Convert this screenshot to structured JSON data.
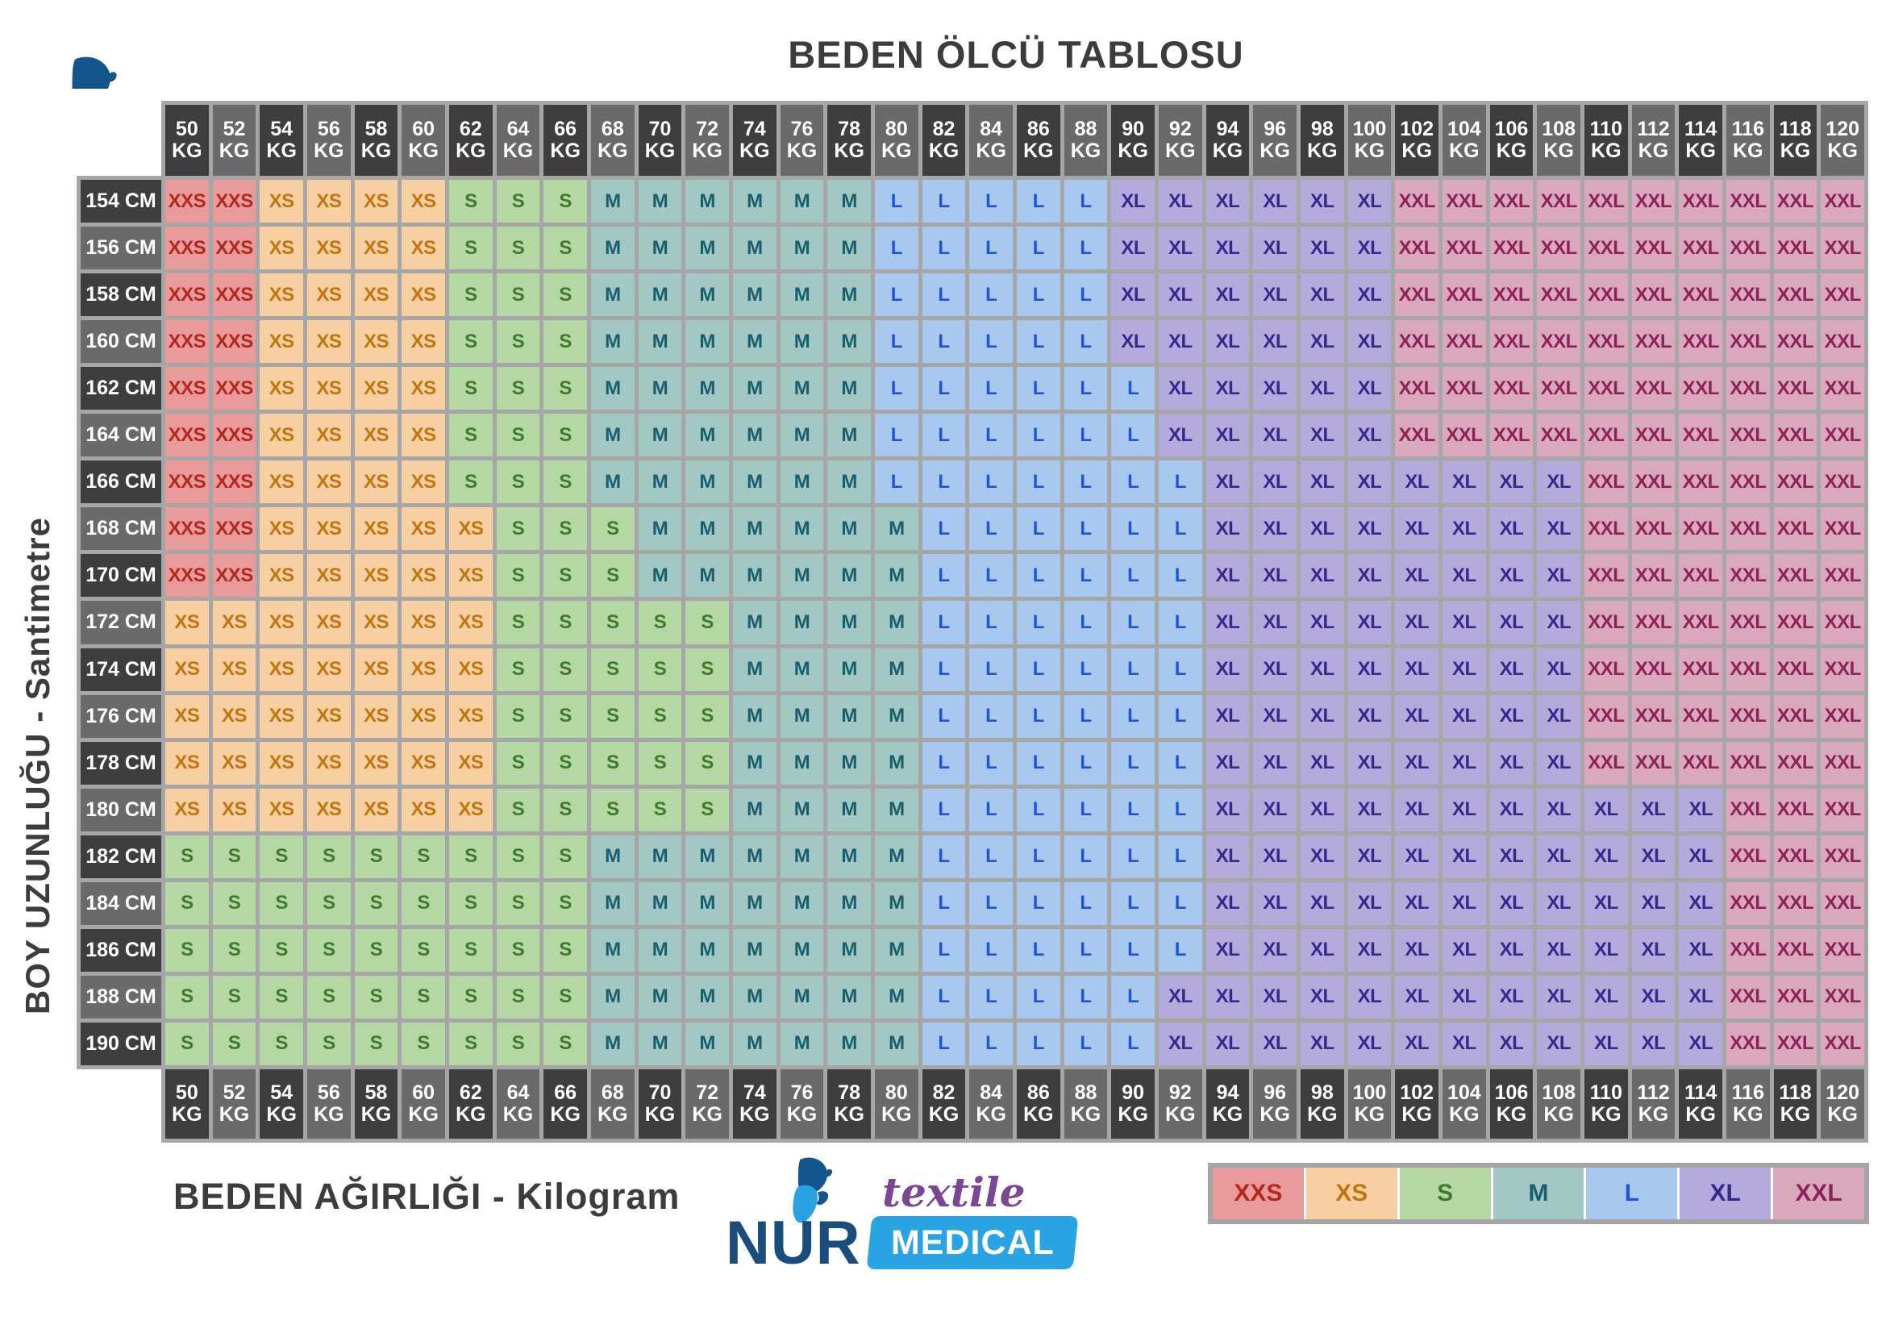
{
  "title": "BEDEN ÖLCÜ TABLOSU",
  "axis": {
    "left": "BOY UZUNLUĞU - Santimetre",
    "bottom": "BEDEN AĞIRLIĞI - Kilogram"
  },
  "logo": {
    "brand": "NUR",
    "tagline": "textile",
    "sub": "MEDICAL"
  },
  "legend": [
    "XXS",
    "XS",
    "S",
    "M",
    "L",
    "XL",
    "XXL"
  ],
  "colors": {
    "frame": "#a6a6a6",
    "header_dark": "#3e3e3e",
    "header_light": "#6a6a6a",
    "header_text": "#ffffff",
    "title_text": "#3c3c3c",
    "logo_navy": "#1a4c7d",
    "logo_purple": "#7c4697",
    "logo_blue": "#29a3e2",
    "sizes": {
      "XXS": {
        "bg": "#e99b9c",
        "fg": "#b5261b"
      },
      "XS": {
        "bg": "#f8cfa3",
        "fg": "#c1760d"
      },
      "S": {
        "bg": "#b4d7a4",
        "fg": "#3d7c2a"
      },
      "M": {
        "bg": "#a3c7c3",
        "fg": "#175f6e"
      },
      "L": {
        "bg": "#a9c8f0",
        "fg": "#1d54da"
      },
      "XL": {
        "bg": "#b5aadc",
        "fg": "#38288e"
      },
      "XXL": {
        "bg": "#daa8bd",
        "fg": "#8d2158"
      }
    }
  },
  "chart_data": {
    "type": "heatmap",
    "title": "BEDEN ÖLCÜ TABLOSU",
    "xlabel": "BEDEN AĞIRLIĞI - Kilogram",
    "ylabel": "BOY UZUNLUĞU - Santimetre",
    "x_unit": "KG",
    "y_unit": "CM",
    "legend": [
      "XXS",
      "XS",
      "S",
      "M",
      "L",
      "XL",
      "XXL"
    ],
    "x": [
      50,
      52,
      54,
      56,
      58,
      60,
      62,
      64,
      66,
      68,
      70,
      72,
      74,
      76,
      78,
      80,
      82,
      84,
      86,
      88,
      90,
      92,
      94,
      96,
      98,
      100,
      102,
      104,
      106,
      108,
      110,
      112,
      114,
      116,
      118,
      120
    ],
    "y": [
      154,
      156,
      158,
      160,
      162,
      164,
      166,
      168,
      170,
      172,
      174,
      176,
      178,
      180,
      182,
      184,
      186,
      188,
      190
    ],
    "values": [
      [
        "XXS",
        "XXS",
        "XS",
        "XS",
        "XS",
        "XS",
        "S",
        "S",
        "S",
        "M",
        "M",
        "M",
        "M",
        "M",
        "M",
        "L",
        "L",
        "L",
        "L",
        "L",
        "XL",
        "XL",
        "XL",
        "XL",
        "XL",
        "XL",
        "XXL",
        "XXL",
        "XXL",
        "XXL",
        "XXL",
        "XXL",
        "XXL",
        "XXL",
        "XXL",
        "XXL"
      ],
      [
        "XXS",
        "XXS",
        "XS",
        "XS",
        "XS",
        "XS",
        "S",
        "S",
        "S",
        "M",
        "M",
        "M",
        "M",
        "M",
        "M",
        "L",
        "L",
        "L",
        "L",
        "L",
        "XL",
        "XL",
        "XL",
        "XL",
        "XL",
        "XL",
        "XXL",
        "XXL",
        "XXL",
        "XXL",
        "XXL",
        "XXL",
        "XXL",
        "XXL",
        "XXL",
        "XXL"
      ],
      [
        "XXS",
        "XXS",
        "XS",
        "XS",
        "XS",
        "XS",
        "S",
        "S",
        "S",
        "M",
        "M",
        "M",
        "M",
        "M",
        "M",
        "L",
        "L",
        "L",
        "L",
        "L",
        "XL",
        "XL",
        "XL",
        "XL",
        "XL",
        "XL",
        "XXL",
        "XXL",
        "XXL",
        "XXL",
        "XXL",
        "XXL",
        "XXL",
        "XXL",
        "XXL",
        "XXL"
      ],
      [
        "XXS",
        "XXS",
        "XS",
        "XS",
        "XS",
        "XS",
        "S",
        "S",
        "S",
        "M",
        "M",
        "M",
        "M",
        "M",
        "M",
        "L",
        "L",
        "L",
        "L",
        "L",
        "XL",
        "XL",
        "XL",
        "XL",
        "XL",
        "XL",
        "XXL",
        "XXL",
        "XXL",
        "XXL",
        "XXL",
        "XXL",
        "XXL",
        "XXL",
        "XXL",
        "XXL"
      ],
      [
        "XXS",
        "XXS",
        "XS",
        "XS",
        "XS",
        "XS",
        "S",
        "S",
        "S",
        "M",
        "M",
        "M",
        "M",
        "M",
        "M",
        "L",
        "L",
        "L",
        "L",
        "L",
        "L",
        "XL",
        "XL",
        "XL",
        "XL",
        "XL",
        "XXL",
        "XXL",
        "XXL",
        "XXL",
        "XXL",
        "XXL",
        "XXL",
        "XXL",
        "XXL",
        "XXL"
      ],
      [
        "XXS",
        "XXS",
        "XS",
        "XS",
        "XS",
        "XS",
        "S",
        "S",
        "S",
        "M",
        "M",
        "M",
        "M",
        "M",
        "M",
        "L",
        "L",
        "L",
        "L",
        "L",
        "L",
        "XL",
        "XL",
        "XL",
        "XL",
        "XL",
        "XXL",
        "XXL",
        "XXL",
        "XXL",
        "XXL",
        "XXL",
        "XXL",
        "XXL",
        "XXL",
        "XXL"
      ],
      [
        "XXS",
        "XXS",
        "XS",
        "XS",
        "XS",
        "XS",
        "S",
        "S",
        "S",
        "M",
        "M",
        "M",
        "M",
        "M",
        "M",
        "L",
        "L",
        "L",
        "L",
        "L",
        "L",
        "L",
        "XL",
        "XL",
        "XL",
        "XL",
        "XL",
        "XL",
        "XL",
        "XL",
        "XXL",
        "XXL",
        "XXL",
        "XXL",
        "XXL",
        "XXL"
      ],
      [
        "XXS",
        "XXS",
        "XS",
        "XS",
        "XS",
        "XS",
        "XS",
        "S",
        "S",
        "S",
        "M",
        "M",
        "M",
        "M",
        "M",
        "M",
        "L",
        "L",
        "L",
        "L",
        "L",
        "L",
        "XL",
        "XL",
        "XL",
        "XL",
        "XL",
        "XL",
        "XL",
        "XL",
        "XXL",
        "XXL",
        "XXL",
        "XXL",
        "XXL",
        "XXL"
      ],
      [
        "XXS",
        "XXS",
        "XS",
        "XS",
        "XS",
        "XS",
        "XS",
        "S",
        "S",
        "S",
        "M",
        "M",
        "M",
        "M",
        "M",
        "M",
        "L",
        "L",
        "L",
        "L",
        "L",
        "L",
        "XL",
        "XL",
        "XL",
        "XL",
        "XL",
        "XL",
        "XL",
        "XL",
        "XXL",
        "XXL",
        "XXL",
        "XXL",
        "XXL",
        "XXL"
      ],
      [
        "XS",
        "XS",
        "XS",
        "XS",
        "XS",
        "XS",
        "XS",
        "S",
        "S",
        "S",
        "S",
        "S",
        "M",
        "M",
        "M",
        "M",
        "L",
        "L",
        "L",
        "L",
        "L",
        "L",
        "XL",
        "XL",
        "XL",
        "XL",
        "XL",
        "XL",
        "XL",
        "XL",
        "XXL",
        "XXL",
        "XXL",
        "XXL",
        "XXL",
        "XXL"
      ],
      [
        "XS",
        "XS",
        "XS",
        "XS",
        "XS",
        "XS",
        "XS",
        "S",
        "S",
        "S",
        "S",
        "S",
        "M",
        "M",
        "M",
        "M",
        "L",
        "L",
        "L",
        "L",
        "L",
        "L",
        "XL",
        "XL",
        "XL",
        "XL",
        "XL",
        "XL",
        "XL",
        "XL",
        "XXL",
        "XXL",
        "XXL",
        "XXL",
        "XXL",
        "XXL"
      ],
      [
        "XS",
        "XS",
        "XS",
        "XS",
        "XS",
        "XS",
        "XS",
        "S",
        "S",
        "S",
        "S",
        "S",
        "M",
        "M",
        "M",
        "M",
        "L",
        "L",
        "L",
        "L",
        "L",
        "L",
        "XL",
        "XL",
        "XL",
        "XL",
        "XL",
        "XL",
        "XL",
        "XL",
        "XXL",
        "XXL",
        "XXL",
        "XXL",
        "XXL",
        "XXL"
      ],
      [
        "XS",
        "XS",
        "XS",
        "XS",
        "XS",
        "XS",
        "XS",
        "S",
        "S",
        "S",
        "S",
        "S",
        "M",
        "M",
        "M",
        "M",
        "L",
        "L",
        "L",
        "L",
        "L",
        "L",
        "XL",
        "XL",
        "XL",
        "XL",
        "XL",
        "XL",
        "XL",
        "XL",
        "XXL",
        "XXL",
        "XXL",
        "XXL",
        "XXL",
        "XXL"
      ],
      [
        "XS",
        "XS",
        "XS",
        "XS",
        "XS",
        "XS",
        "XS",
        "S",
        "S",
        "S",
        "S",
        "S",
        "M",
        "M",
        "M",
        "M",
        "L",
        "L",
        "L",
        "L",
        "L",
        "L",
        "XL",
        "XL",
        "XL",
        "XL",
        "XL",
        "XL",
        "XL",
        "XL",
        "XL",
        "XL",
        "XL",
        "XXL",
        "XXL",
        "XXL"
      ],
      [
        "S",
        "S",
        "S",
        "S",
        "S",
        "S",
        "S",
        "S",
        "S",
        "M",
        "M",
        "M",
        "M",
        "M",
        "M",
        "M",
        "L",
        "L",
        "L",
        "L",
        "L",
        "L",
        "XL",
        "XL",
        "XL",
        "XL",
        "XL",
        "XL",
        "XL",
        "XL",
        "XL",
        "XL",
        "XL",
        "XXL",
        "XXL",
        "XXL"
      ],
      [
        "S",
        "S",
        "S",
        "S",
        "S",
        "S",
        "S",
        "S",
        "S",
        "M",
        "M",
        "M",
        "M",
        "M",
        "M",
        "M",
        "L",
        "L",
        "L",
        "L",
        "L",
        "L",
        "XL",
        "XL",
        "XL",
        "XL",
        "XL",
        "XL",
        "XL",
        "XL",
        "XL",
        "XL",
        "XL",
        "XXL",
        "XXL",
        "XXL"
      ],
      [
        "S",
        "S",
        "S",
        "S",
        "S",
        "S",
        "S",
        "S",
        "S",
        "M",
        "M",
        "M",
        "M",
        "M",
        "M",
        "M",
        "L",
        "L",
        "L",
        "L",
        "L",
        "L",
        "XL",
        "XL",
        "XL",
        "XL",
        "XL",
        "XL",
        "XL",
        "XL",
        "XL",
        "XL",
        "XL",
        "XXL",
        "XXL",
        "XXL"
      ],
      [
        "S",
        "S",
        "S",
        "S",
        "S",
        "S",
        "S",
        "S",
        "S",
        "M",
        "M",
        "M",
        "M",
        "M",
        "M",
        "M",
        "L",
        "L",
        "L",
        "L",
        "L",
        "XL",
        "XL",
        "XL",
        "XL",
        "XL",
        "XL",
        "XL",
        "XL",
        "XL",
        "XL",
        "XL",
        "XL",
        "XXL",
        "XXL",
        "XXL"
      ],
      [
        "S",
        "S",
        "S",
        "S",
        "S",
        "S",
        "S",
        "S",
        "S",
        "M",
        "M",
        "M",
        "M",
        "M",
        "M",
        "M",
        "L",
        "L",
        "L",
        "L",
        "L",
        "XL",
        "XL",
        "XL",
        "XL",
        "XL",
        "XL",
        "XL",
        "XL",
        "XL",
        "XL",
        "XL",
        "XL",
        "XXL",
        "XXL",
        "XXL"
      ]
    ]
  }
}
